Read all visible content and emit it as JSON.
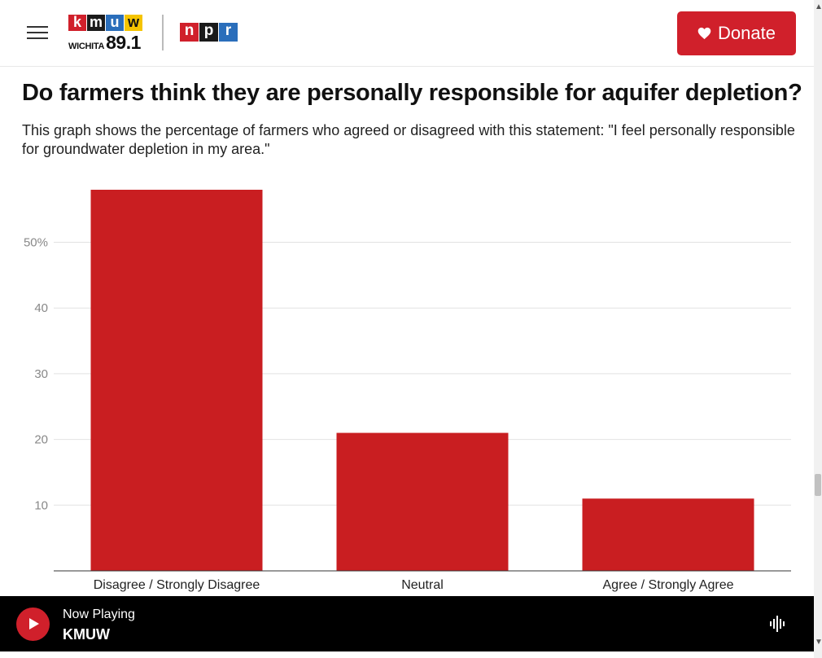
{
  "header": {
    "kmuw_letters": [
      "k",
      "m",
      "u",
      "w"
    ],
    "kmuw_colors": [
      "#d0202b",
      "#1a1a1a",
      "#2a6ebb",
      "#f5c400"
    ],
    "kmuw_city": "WICHITA",
    "kmuw_frequency": "89.1",
    "npr_letters": [
      "n",
      "p",
      "r"
    ],
    "npr_colors": [
      "#d0202b",
      "#1a1a1a",
      "#2a6ebb"
    ],
    "donate_label": "Donate",
    "accent": "#d0202b"
  },
  "article": {
    "title": "Do farmers think they are personally responsible for aquifer depletion?",
    "subtitle": "This graph shows the percentage of farmers who agreed or disagreed with this statement: \"I feel personally responsible for groundwater depletion in my area.\""
  },
  "chart_data": {
    "type": "bar",
    "categories": [
      "Disagree / Strongly Disagree",
      "Neutral",
      "Agree / Strongly Agree"
    ],
    "values": [
      58,
      21,
      11
    ],
    "ylim": [
      0,
      58
    ],
    "yticks": [
      10,
      20,
      30,
      40,
      50
    ],
    "ytick_labels": [
      "10",
      "20",
      "30",
      "40",
      "50%"
    ],
    "bar_color": "#c91e21",
    "grid": true
  },
  "player": {
    "now_playing_label": "Now Playing",
    "station": "KMUW"
  }
}
